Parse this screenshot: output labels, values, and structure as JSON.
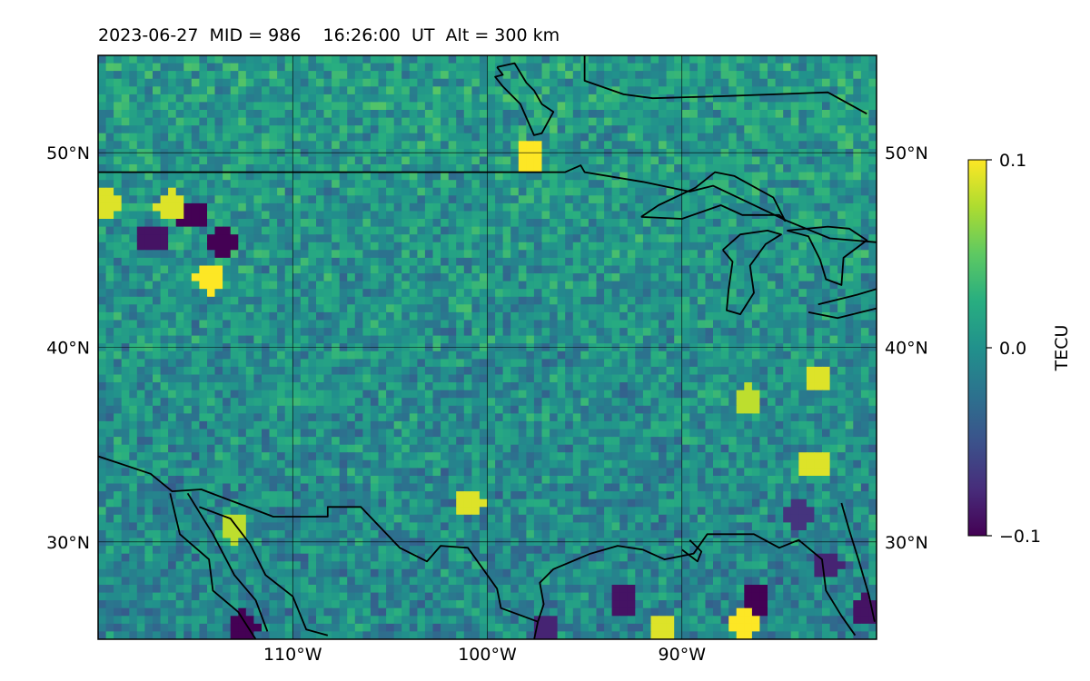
{
  "chart_data": {
    "type": "heatmap",
    "title": "2023-06-27  MID = 986    16:26:00  UT  Alt = 300 km",
    "map": {
      "lon_range": [
        -120,
        -80
      ],
      "lat_range": [
        25,
        55
      ],
      "x_ticks": [
        {
          "value": -110,
          "label": "110°W"
        },
        {
          "value": -100,
          "label": "100°W"
        },
        {
          "value": -90,
          "label": "90°W"
        }
      ],
      "y_ticks": [
        {
          "value": 30,
          "label": "30°N"
        },
        {
          "value": 40,
          "label": "40°N"
        },
        {
          "value": 50,
          "label": "50°N"
        }
      ],
      "grid": true,
      "coastlines": true,
      "background_value": 0.0,
      "noise_amplitude": 0.03,
      "hotspots": [
        {
          "lon": -114.3,
          "lat": 43.5,
          "value": 0.1
        },
        {
          "lon": -115.2,
          "lat": 46.8,
          "value": -0.1
        },
        {
          "lon": -113.7,
          "lat": 45.4,
          "value": -0.1
        },
        {
          "lon": -117.2,
          "lat": 45.6,
          "value": -0.09
        },
        {
          "lon": -119.5,
          "lat": 47.4,
          "value": 0.09
        },
        {
          "lon": -116.3,
          "lat": 47.3,
          "value": 0.09
        },
        {
          "lon": -97.8,
          "lat": 49.8,
          "value": 0.1
        },
        {
          "lon": -100.9,
          "lat": 32.0,
          "value": 0.09
        },
        {
          "lon": -113.0,
          "lat": 30.7,
          "value": 0.08
        },
        {
          "lon": -112.5,
          "lat": 25.7,
          "value": -0.1
        },
        {
          "lon": -86.2,
          "lat": 27.0,
          "value": -0.1
        },
        {
          "lon": -86.8,
          "lat": 25.7,
          "value": 0.1
        },
        {
          "lon": -91.0,
          "lat": 25.6,
          "value": 0.09
        },
        {
          "lon": -83.2,
          "lat": 34.0,
          "value": 0.09
        },
        {
          "lon": -83.0,
          "lat": 38.4,
          "value": 0.09
        },
        {
          "lon": -86.6,
          "lat": 37.3,
          "value": 0.08
        },
        {
          "lon": -93.0,
          "lat": 27.0,
          "value": -0.09
        },
        {
          "lon": -97.0,
          "lat": 25.5,
          "value": -0.08
        },
        {
          "lon": -80.6,
          "lat": 26.5,
          "value": -0.09
        },
        {
          "lon": -82.5,
          "lat": 28.8,
          "value": -0.08
        },
        {
          "lon": -84.0,
          "lat": 31.5,
          "value": -0.07
        }
      ]
    },
    "colorbar": {
      "label": "TECU",
      "vmin": -0.1,
      "vmax": 0.1,
      "ticks": [
        {
          "value": 0.1,
          "label": "0.1"
        },
        {
          "value": 0.0,
          "label": "0.0"
        },
        {
          "value": -0.1,
          "label": "−0.1"
        }
      ],
      "colormap": "viridis"
    }
  }
}
